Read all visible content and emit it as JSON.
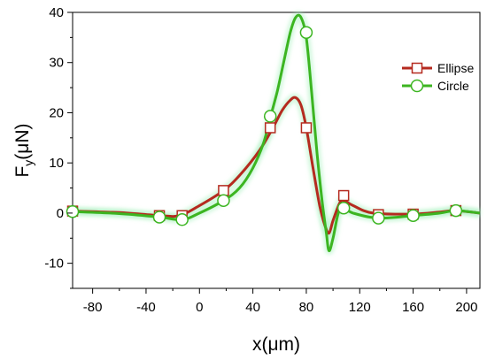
{
  "chart_data": {
    "type": "line",
    "xlabel": "x(μm)",
    "ylabel_main": "F",
    "ylabel_sub": "y",
    "ylabel_unit": "(μN)",
    "xlim": [
      -95,
      210
    ],
    "ylim": [
      -15,
      40
    ],
    "xticks": [
      -80,
      -40,
      0,
      40,
      80,
      120,
      160,
      200
    ],
    "yticks": [
      -10,
      0,
      10,
      20,
      30,
      40
    ],
    "grid": false,
    "legend_position": "top-right",
    "series": [
      {
        "name": "Ellipse",
        "color": "#b52a1f",
        "marker": "square",
        "curve": [
          [
            -95,
            0.4
          ],
          [
            -60,
            0.1
          ],
          [
            -30,
            -0.5
          ],
          [
            -15,
            -0.5
          ],
          [
            0,
            1.5
          ],
          [
            18,
            4.5
          ],
          [
            30,
            7.5
          ],
          [
            45,
            12.5
          ],
          [
            55,
            17
          ],
          [
            62,
            20.5
          ],
          [
            68,
            22.5
          ],
          [
            72,
            23
          ],
          [
            76,
            21.5
          ],
          [
            80,
            17
          ],
          [
            85,
            9
          ],
          [
            90,
            1.5
          ],
          [
            94,
            -2.5
          ],
          [
            97,
            -4
          ],
          [
            100,
            -1.5
          ],
          [
            105,
            2
          ],
          [
            108,
            2.5
          ],
          [
            115,
            1.5
          ],
          [
            130,
            0
          ],
          [
            160,
            -0.2
          ],
          [
            180,
            0.2
          ],
          [
            192,
            0.5
          ],
          [
            210,
            0
          ]
        ],
        "markers": [
          [
            -95,
            0.4
          ],
          [
            -30,
            -0.5
          ],
          [
            -13,
            -0.5
          ],
          [
            18,
            4.5
          ],
          [
            53,
            17
          ],
          [
            80,
            17
          ],
          [
            108,
            3.5
          ],
          [
            134,
            -0.3
          ],
          [
            160,
            -0.2
          ],
          [
            192,
            0.5
          ]
        ]
      },
      {
        "name": "Circle",
        "color": "#3cb521",
        "marker": "circle",
        "curve": [
          [
            -95,
            0.3
          ],
          [
            -60,
            -0.1
          ],
          [
            -30,
            -0.8
          ],
          [
            -13,
            -1.3
          ],
          [
            0,
            0
          ],
          [
            18,
            2.5
          ],
          [
            30,
            5
          ],
          [
            40,
            9
          ],
          [
            48,
            14
          ],
          [
            53,
            19
          ],
          [
            58,
            24
          ],
          [
            63,
            30
          ],
          [
            68,
            36
          ],
          [
            72,
            39
          ],
          [
            76,
            39
          ],
          [
            80,
            35
          ],
          [
            84,
            24
          ],
          [
            88,
            12
          ],
          [
            92,
            2
          ],
          [
            95,
            -4
          ],
          [
            97,
            -7.5
          ],
          [
            100,
            -5
          ],
          [
            104,
            0
          ],
          [
            108,
            1
          ],
          [
            115,
            0
          ],
          [
            134,
            -1
          ],
          [
            160,
            -0.5
          ],
          [
            180,
            0
          ],
          [
            192,
            0.5
          ],
          [
            210,
            0
          ]
        ],
        "markers": [
          [
            -95,
            0.3
          ],
          [
            -30,
            -0.8
          ],
          [
            -13,
            -1.3
          ],
          [
            18,
            2.5
          ],
          [
            53,
            19.3
          ],
          [
            80,
            36
          ],
          [
            108,
            1
          ],
          [
            134,
            -1
          ],
          [
            160,
            -0.5
          ],
          [
            192,
            0.5
          ]
        ]
      }
    ]
  }
}
